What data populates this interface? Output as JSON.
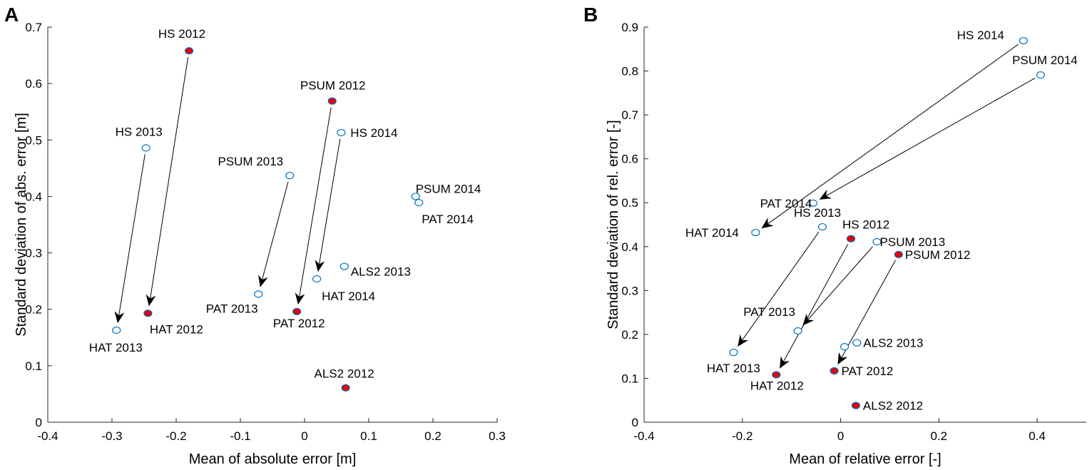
{
  "colors": {
    "filled_marker": "#e8000b",
    "open_marker": "#0072bd",
    "axis": "#262626",
    "arrow": "#000000"
  },
  "chart_data": [
    {
      "type": "scatter",
      "panel": "A",
      "xlabel": "Mean of absolute error [m]",
      "ylabel": "Standard deviation of abs. error [m]",
      "xlim": [
        -0.4,
        0.3
      ],
      "ylim": [
        0,
        0.7
      ],
      "xticks": [
        "-0.4",
        "-0.3",
        "-0.2",
        "-0.1",
        "0",
        "0.1",
        "0.2",
        "0.3"
      ],
      "yticks": [
        "0",
        "0.1",
        "0.2",
        "0.3",
        "0.4",
        "0.5",
        "0.6",
        "0.7"
      ],
      "points": [
        {
          "label": "HS 2012",
          "x": -0.18,
          "y": 0.658,
          "filled": true
        },
        {
          "label": "HAT 2012",
          "x": -0.244,
          "y": 0.193,
          "filled": true
        },
        {
          "label": "HS 2013",
          "x": -0.247,
          "y": 0.486,
          "filled": false
        },
        {
          "label": "HAT 2013",
          "x": -0.293,
          "y": 0.163,
          "filled": false
        },
        {
          "label": "PSUM 2013",
          "x": -0.023,
          "y": 0.437,
          "filled": false
        },
        {
          "label": "PAT 2013",
          "x": -0.072,
          "y": 0.227,
          "filled": false
        },
        {
          "label": "PSUM 2012",
          "x": 0.043,
          "y": 0.569,
          "filled": true
        },
        {
          "label": "PAT 2012",
          "x": -0.012,
          "y": 0.196,
          "filled": true
        },
        {
          "label": "HS 2014",
          "x": 0.057,
          "y": 0.513,
          "filled": false
        },
        {
          "label": "HAT 2014",
          "x": 0.019,
          "y": 0.254,
          "filled": false
        },
        {
          "label": "ALS2 2013",
          "x": 0.062,
          "y": 0.276,
          "filled": false
        },
        {
          "label": "PSUM 2014",
          "x": 0.173,
          "y": 0.4,
          "filled": false
        },
        {
          "label": "PAT 2014",
          "x": 0.178,
          "y": 0.389,
          "filled": false
        },
        {
          "label": "ALS2 2012",
          "x": 0.064,
          "y": 0.061,
          "filled": true
        }
      ],
      "arrows": [
        {
          "from": "HS 2012",
          "to": "HAT 2012"
        },
        {
          "from": "HS 2013",
          "to": "HAT 2013"
        },
        {
          "from": "PSUM 2013",
          "to": "PAT 2013"
        },
        {
          "from": "PSUM 2012",
          "to": "PAT 2012"
        },
        {
          "from": "HS 2014",
          "to": "HAT 2014"
        }
      ]
    },
    {
      "type": "scatter",
      "panel": "B",
      "xlabel": "Mean of relative error [-]",
      "ylabel": "Standard deviation of rel. error [-]",
      "xlim": [
        -0.4,
        0.5
      ],
      "ylim": [
        0,
        0.9
      ],
      "xticks": [
        "-0.4",
        "-0.2",
        "0",
        "0.2",
        "0.4"
      ],
      "yticks": [
        "0",
        "0.1",
        "0.2",
        "0.3",
        "0.4",
        "0.5",
        "0.6",
        "0.7",
        "0.8",
        "0.9"
      ],
      "points": [
        {
          "label": "HS 2014",
          "x": 0.372,
          "y": 0.869,
          "filled": false
        },
        {
          "label": "PSUM 2014",
          "x": 0.407,
          "y": 0.791,
          "filled": false
        },
        {
          "label": "PAT 2014",
          "x": -0.056,
          "y": 0.499,
          "filled": false
        },
        {
          "label": "HAT 2014",
          "x": -0.173,
          "y": 0.432,
          "filled": false
        },
        {
          "label": "HS 2013",
          "x": -0.037,
          "y": 0.445,
          "filled": false
        },
        {
          "label": "HS 2012",
          "x": 0.021,
          "y": 0.418,
          "filled": true
        },
        {
          "label": "PSUM 2013",
          "x": 0.074,
          "y": 0.411,
          "filled": false
        },
        {
          "label": "PSUM 2012",
          "x": 0.118,
          "y": 0.382,
          "filled": true
        },
        {
          "label": "PAT 2013",
          "x": -0.087,
          "y": 0.208,
          "filled": false
        },
        {
          "label": "HAT 2013",
          "x": -0.218,
          "y": 0.159,
          "filled": false
        },
        {
          "label": "HAT 2012",
          "x": -0.131,
          "y": 0.108,
          "filled": true
        },
        {
          "label": "ALS2 2013",
          "x": 0.033,
          "y": 0.181,
          "filled": false
        },
        {
          "label": "ALS2 2013 b",
          "x": 0.008,
          "y": 0.172,
          "filled": false,
          "unlabeled": true
        },
        {
          "label": "PAT 2012",
          "x": -0.013,
          "y": 0.117,
          "filled": true
        },
        {
          "label": "ALS2 2012",
          "x": 0.031,
          "y": 0.038,
          "filled": true
        }
      ],
      "arrows": [
        {
          "from": "HS 2014",
          "to": "HAT 2014"
        },
        {
          "from": "PSUM 2014",
          "to": "PAT 2014"
        },
        {
          "from": "HS 2013",
          "to": "HAT 2013"
        },
        {
          "from": "HS 2012",
          "to": "HAT 2012"
        },
        {
          "from": "PSUM 2013",
          "to": "PAT 2013"
        },
        {
          "from": "PSUM 2012",
          "to": "PAT 2012"
        }
      ]
    }
  ]
}
